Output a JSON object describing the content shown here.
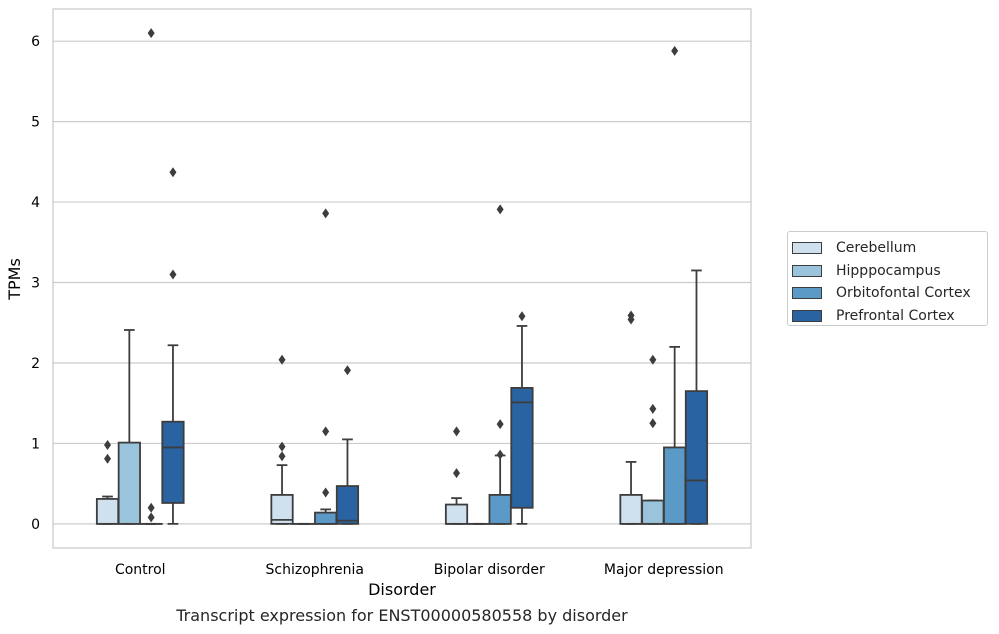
{
  "chart_data": {
    "type": "box",
    "title": "",
    "caption": "Transcript expression for ENST00000580558 by disorder",
    "xlabel": "Disorder",
    "ylabel": "TPMs",
    "ylim": [
      -0.3,
      6.4
    ],
    "yticks": [
      0,
      1,
      2,
      3,
      4,
      5,
      6
    ],
    "grid": "y",
    "legend_position": "right",
    "categories": [
      "Control",
      "Schizophrenia",
      "Bipolar disorder",
      "Major depression"
    ],
    "series": [
      {
        "name": "Cerebellum",
        "color": "#cfe0ef",
        "boxes": [
          {
            "whislo": 0,
            "q1": 0,
            "med": 0,
            "q3": 0.31,
            "whishi": 0.34,
            "fliers": [
              0.98,
              0.81
            ]
          },
          {
            "whislo": 0,
            "q1": 0,
            "med": 0.05,
            "q3": 0.36,
            "whishi": 0.73,
            "fliers": [
              2.04,
              0.96,
              0.84
            ]
          },
          {
            "whislo": 0,
            "q1": 0,
            "med": 0,
            "q3": 0.24,
            "whishi": 0.32,
            "fliers": [
              1.15,
              0.63
            ]
          },
          {
            "whislo": 0,
            "q1": 0,
            "med": 0,
            "q3": 0.36,
            "whishi": 0.77,
            "fliers": [
              2.59,
              2.54
            ]
          }
        ]
      },
      {
        "name": "Hipppocampus",
        "color": "#9ac4dc",
        "boxes": [
          {
            "whislo": 0,
            "q1": 0,
            "med": 0,
            "q3": 1.01,
            "whishi": 2.41,
            "fliers": []
          },
          {
            "whislo": 0,
            "q1": 0,
            "med": 0,
            "q3": 0,
            "whishi": 0,
            "fliers": []
          },
          {
            "whislo": 0,
            "q1": 0,
            "med": 0,
            "q3": 0,
            "whishi": 0,
            "fliers": []
          },
          {
            "whislo": 0,
            "q1": 0,
            "med": 0,
            "q3": 0.29,
            "whishi": 0.29,
            "fliers": [
              2.04,
              1.43,
              1.25
            ]
          }
        ]
      },
      {
        "name": "Orbitofontal Cortex",
        "color": "#5b9ac7",
        "boxes": [
          {
            "whislo": 0,
            "q1": 0,
            "med": 0,
            "q3": 0,
            "whishi": 0,
            "fliers": [
              6.1,
              0.2,
              0.08
            ]
          },
          {
            "whislo": 0,
            "q1": 0,
            "med": 0,
            "q3": 0.14,
            "whishi": 0.18,
            "fliers": [
              3.86,
              1.15,
              0.39
            ]
          },
          {
            "whislo": 0,
            "q1": 0,
            "med": 0,
            "q3": 0.36,
            "whishi": 0.85,
            "fliers": [
              3.91,
              1.24,
              0.86
            ]
          },
          {
            "whislo": 0,
            "q1": 0,
            "med": 0,
            "q3": 0.95,
            "whishi": 2.2,
            "fliers": [
              5.88
            ]
          }
        ]
      },
      {
        "name": "Prefrontal Cortex",
        "color": "#2a63a2",
        "boxes": [
          {
            "whislo": 0,
            "q1": 0.26,
            "med": 0.95,
            "q3": 1.27,
            "whishi": 2.22,
            "fliers": [
              4.37,
              3.1
            ]
          },
          {
            "whislo": 0,
            "q1": 0,
            "med": 0.04,
            "q3": 0.47,
            "whishi": 1.05,
            "fliers": [
              1.91
            ]
          },
          {
            "whislo": 0,
            "q1": 0.2,
            "med": 1.51,
            "q3": 1.69,
            "whishi": 2.46,
            "fliers": [
              2.58
            ]
          },
          {
            "whislo": 0,
            "q1": 0,
            "med": 0.54,
            "q3": 1.65,
            "whishi": 3.15,
            "fliers": []
          }
        ]
      }
    ]
  }
}
